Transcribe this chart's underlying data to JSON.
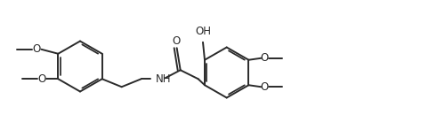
{
  "bg_color": "#ffffff",
  "line_color": "#2a2a2a",
  "line_width": 1.4,
  "font_size": 8.5,
  "fig_width": 4.91,
  "fig_height": 1.47,
  "dpi": 100,
  "xlim": [
    0,
    4.91
  ],
  "ylim": [
    0,
    1.47
  ]
}
